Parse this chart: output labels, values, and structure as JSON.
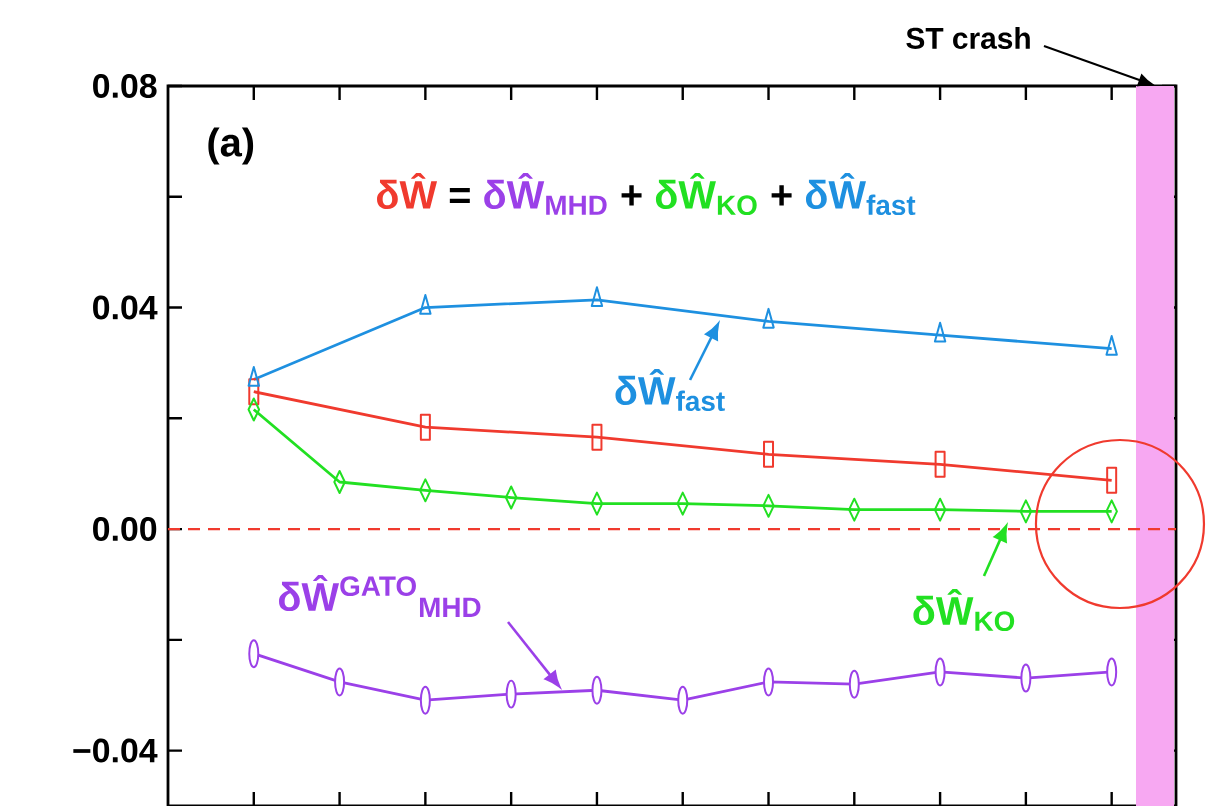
{
  "chart_data": {
    "type": "line",
    "categories": [
      null,
      null,
      null,
      null,
      null,
      null,
      null,
      null,
      null,
      null,
      null
    ],
    "ylim": [
      -0.05,
      0.08
    ],
    "yticks": [
      {
        "value": -0.04,
        "label": "−0.04"
      },
      {
        "value": -0.02,
        "label": null
      },
      {
        "value": 0,
        "label": "0.00"
      },
      {
        "value": 0.02,
        "label": null
      },
      {
        "value": 0.04,
        "label": "0.04"
      },
      {
        "value": 0.06,
        "label": null
      },
      {
        "value": 0.08,
        "label": "0.08"
      }
    ],
    "series": [
      {
        "color": "#f03a2e",
        "marker": "square",
        "values": [
          0.0248,
          null,
          0.0184,
          null,
          0.0166,
          null,
          0.0135,
          null,
          0.0117,
          null,
          0.0088
        ]
      },
      {
        "name": "δŴ$^{GATO}$$_{MHD}$",
        "color": "#9b40e8",
        "marker": "circle",
        "values": [
          -0.0225,
          -0.0276,
          -0.0309,
          -0.0298,
          -0.0291,
          -0.0309,
          -0.0276,
          -0.028,
          -0.0258,
          -0.0269,
          -0.0258
        ]
      },
      {
        "name": "δŴ$_{KO}$",
        "color": "#22e022",
        "marker": "diamond",
        "values": [
          0.0216,
          0.0085,
          0.007,
          0.0057,
          0.0046,
          0.0046,
          0.0042,
          0.0035,
          0.0035,
          0.0032,
          0.0032
        ]
      },
      {
        "name": "δŴ$_{fast}$",
        "color": "#1e90e0",
        "marker": "triangle",
        "values": [
          0.027,
          null,
          0.04,
          null,
          0.0414,
          null,
          0.0375,
          null,
          0.035,
          null,
          0.0326
        ]
      }
    ],
    "ref_lines": [
      {
        "axis": "y",
        "value": 0,
        "color": "#f03a2e",
        "line_style": "dashed"
      }
    ],
    "annotations": [
      "(a)",
      "ST crash",
      "δŴ",
      "=",
      "δŴ$_{MHD}$",
      "+",
      "δŴ$_{KO}$",
      "+",
      "δŴ$_{fast}$"
    ],
    "line_style": "solid",
    "legend": "right"
  }
}
